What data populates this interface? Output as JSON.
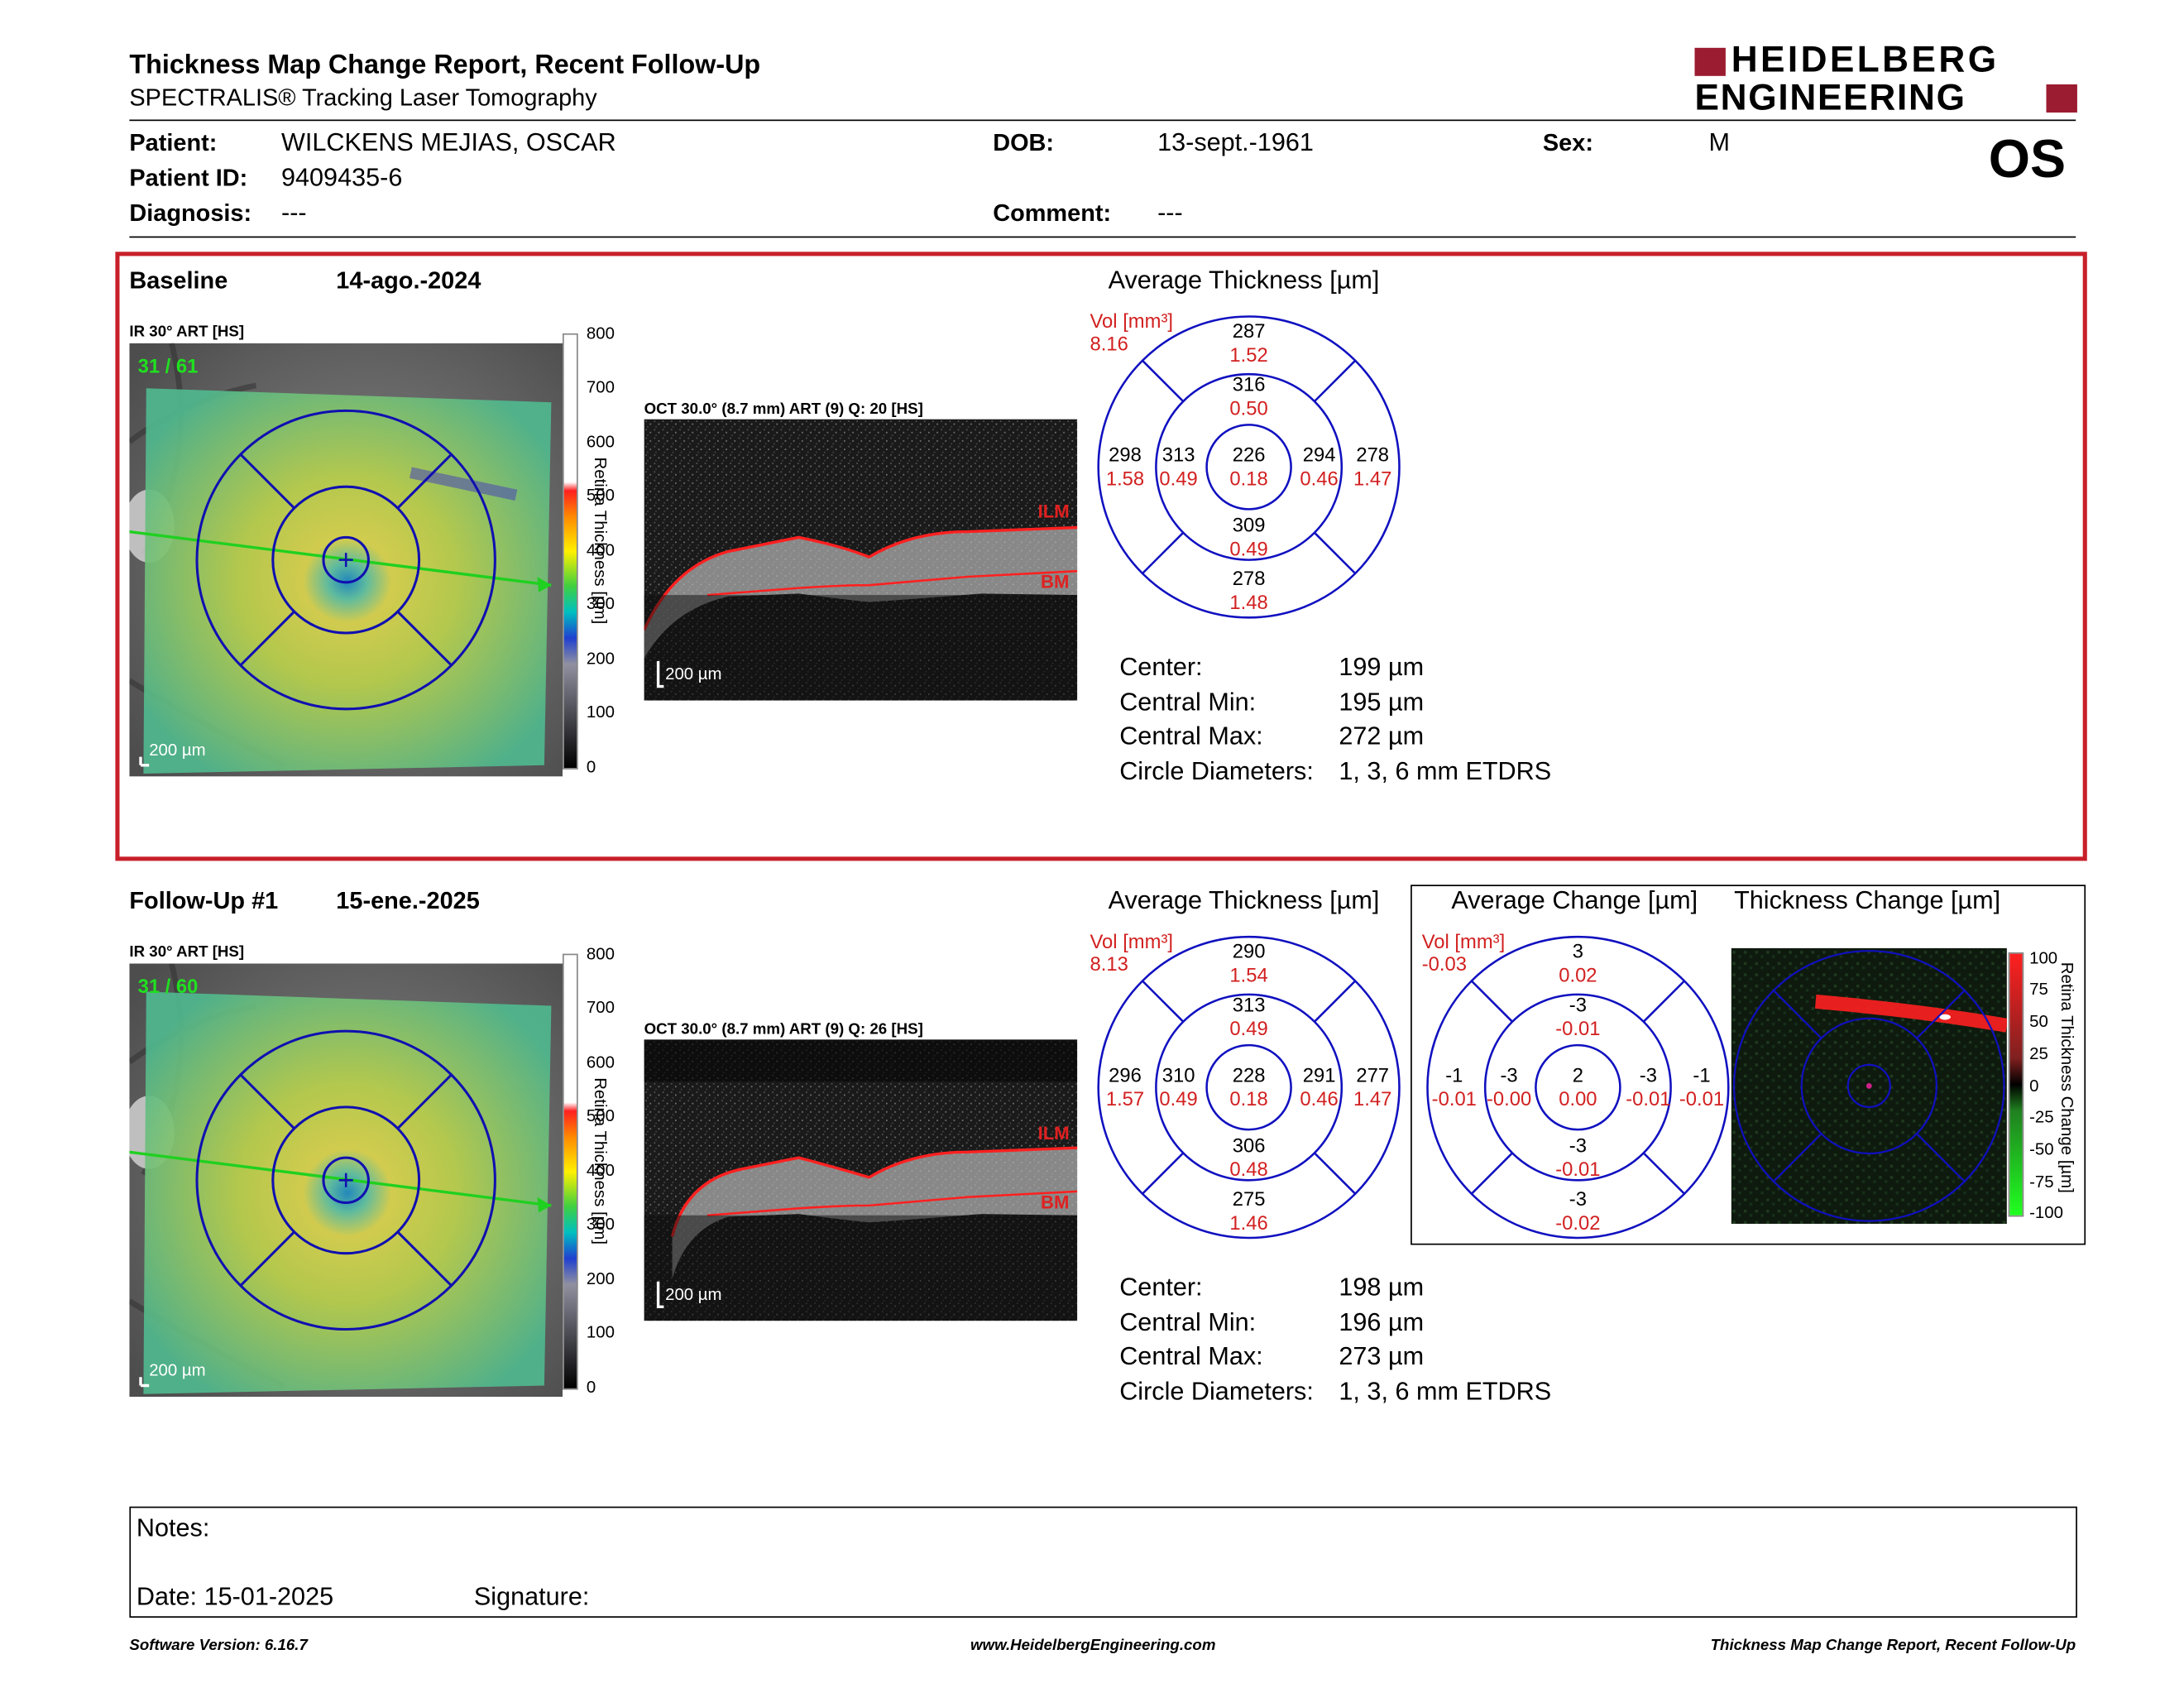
{
  "header": {
    "title": "Thickness Map Change Report, Recent Follow-Up",
    "subtitle": "SPECTRALIS® Tracking Laser Tomography",
    "logo_line1": "HEIDELBERG",
    "logo_line2": "ENGINEERING",
    "brand_color": "#9b1b30"
  },
  "patient": {
    "name_label": "Patient:",
    "name": "WILCKENS MEJIAS, OSCAR",
    "id_label": "Patient ID:",
    "id": "9409435-6",
    "diag_label": "Diagnosis:",
    "diag": "---",
    "dob_label": "DOB:",
    "dob": "13-sept.-1961",
    "comment_label": "Comment:",
    "comment": "---",
    "sex_label": "Sex:",
    "sex": "M",
    "eye": "OS"
  },
  "colorbar": {
    "labels": [
      "800",
      "700",
      "600",
      "500",
      "400",
      "300",
      "200",
      "100",
      "0"
    ],
    "title": "Retina Thickness [µm]"
  },
  "change_colorbar": {
    "labels": [
      "100",
      "75",
      "50",
      "25",
      "0",
      "-25",
      "-50",
      "-75",
      "-100"
    ],
    "title": "Retina Thickness Change [µm]"
  },
  "baseline": {
    "label": "Baseline",
    "date": "14-ago.-2024",
    "ir_label": "IR 30° ART [HS]",
    "ir_count": "31 / 61",
    "scale": "200 µm",
    "oct_label": "OCT 30.0° (8.7 mm) ART (9) Q: 20 [HS]",
    "oct_scale": "200 µm",
    "ilm": "ILM",
    "bm": "BM",
    "avg_title": "Average Thickness [µm]",
    "vol_label": "Vol [mm³]",
    "vol": "8.16",
    "grid": {
      "outer_top": [
        "287",
        "1.52"
      ],
      "inner_top": [
        "316",
        "0.50"
      ],
      "outer_left": [
        "298",
        "1.58"
      ],
      "inner_left": [
        "313",
        "0.49"
      ],
      "center": [
        "226",
        "0.18"
      ],
      "inner_right": [
        "294",
        "0.46"
      ],
      "outer_right": [
        "278",
        "1.47"
      ],
      "inner_bottom": [
        "309",
        "0.49"
      ],
      "outer_bottom": [
        "278",
        "1.48"
      ]
    },
    "stats": {
      "center_label": "Center:",
      "center": "199 µm",
      "min_label": "Central Min:",
      "min": "195 µm",
      "max_label": "Central Max:",
      "max": "272 µm",
      "diam_label": "Circle Diameters:",
      "diam": "1, 3, 6 mm ETDRS"
    }
  },
  "followup": {
    "label": "Follow-Up #1",
    "date": "15-ene.-2025",
    "ir_label": "IR 30° ART [HS]",
    "ir_count": "31 / 60",
    "scale": "200 µm",
    "oct_label": "OCT 30.0° (8.7 mm) ART (9) Q: 26 [HS]",
    "oct_scale": "200 µm",
    "ilm": "ILM",
    "bm": "BM",
    "avg_title": "Average Thickness [µm]",
    "vol_label": "Vol [mm³]",
    "vol": "8.13",
    "grid": {
      "outer_top": [
        "290",
        "1.54"
      ],
      "inner_top": [
        "313",
        "0.49"
      ],
      "outer_left": [
        "296",
        "1.57"
      ],
      "inner_left": [
        "310",
        "0.49"
      ],
      "center": [
        "228",
        "0.18"
      ],
      "inner_right": [
        "291",
        "0.46"
      ],
      "outer_right": [
        "277",
        "1.47"
      ],
      "inner_bottom": [
        "306",
        "0.48"
      ],
      "outer_bottom": [
        "275",
        "1.46"
      ]
    },
    "stats": {
      "center_label": "Center:",
      "center": "198 µm",
      "min_label": "Central Min:",
      "min": "196 µm",
      "max_label": "Central Max:",
      "max": "273 µm",
      "diam_label": "Circle Diameters:",
      "diam": "1, 3, 6 mm ETDRS"
    },
    "change_title": "Average Change [µm]",
    "change_vol_label": "Vol [mm³]",
    "change_vol": "-0.03",
    "change_grid": {
      "outer_top": [
        "3",
        "0.02"
      ],
      "inner_top": [
        "-3",
        "-0.01"
      ],
      "outer_left": [
        "-1",
        "-0.01"
      ],
      "inner_left": [
        "-3",
        "-0.00"
      ],
      "center": [
        "2",
        "0.00"
      ],
      "inner_right": [
        "-3",
        "-0.01"
      ],
      "outer_right": [
        "-1",
        "-0.01"
      ],
      "inner_bottom": [
        "-3",
        "-0.01"
      ],
      "outer_bottom": [
        "-3",
        "-0.02"
      ]
    },
    "thickness_change_title": "Thickness Change [µm]"
  },
  "notes": {
    "label": "Notes:",
    "date_label": "Date:",
    "date": "15-01-2025",
    "sig_label": "Signature:"
  },
  "footer": {
    "left": "Software Version: 6.16.7",
    "center": "www.HeidelbergEngineering.com",
    "right": "Thickness Map Change Report, Recent Follow-Up"
  }
}
